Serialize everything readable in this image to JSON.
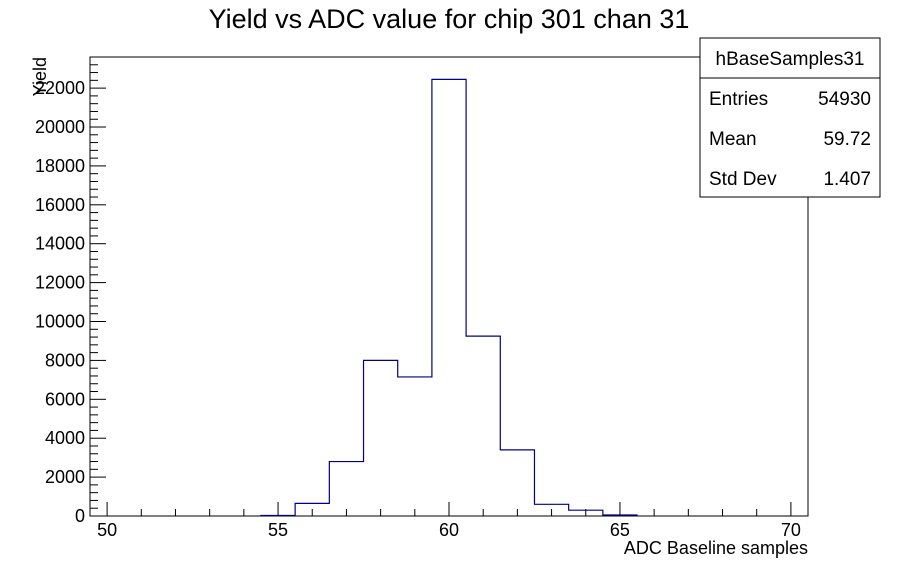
{
  "chart_data": {
    "type": "bar",
    "title": "Yield vs ADC value for chip 301 chan 31",
    "xlabel": "ADC Baseline samples",
    "ylabel": "Yield",
    "xlim": [
      49.5,
      70.5
    ],
    "ylim": [
      0,
      23600
    ],
    "xticks": [
      50,
      55,
      60,
      65,
      70
    ],
    "yticks": [
      0,
      2000,
      4000,
      6000,
      8000,
      10000,
      12000,
      14000,
      16000,
      18000,
      20000,
      22000
    ],
    "bin_width": 1,
    "bin_centers": [
      55,
      56,
      57,
      58,
      59,
      60,
      61,
      62,
      63,
      64,
      65
    ],
    "values": [
      30,
      650,
      2800,
      8000,
      7150,
      22450,
      9250,
      3400,
      600,
      300,
      50
    ],
    "line_color": "#00008b",
    "grid": false
  },
  "stats": {
    "name": "hBaseSamples31",
    "rows": [
      {
        "label": "Entries",
        "value": "54930"
      },
      {
        "label": "Mean",
        "value": "59.72"
      },
      {
        "label": "Std Dev",
        "value": "1.407"
      }
    ]
  }
}
